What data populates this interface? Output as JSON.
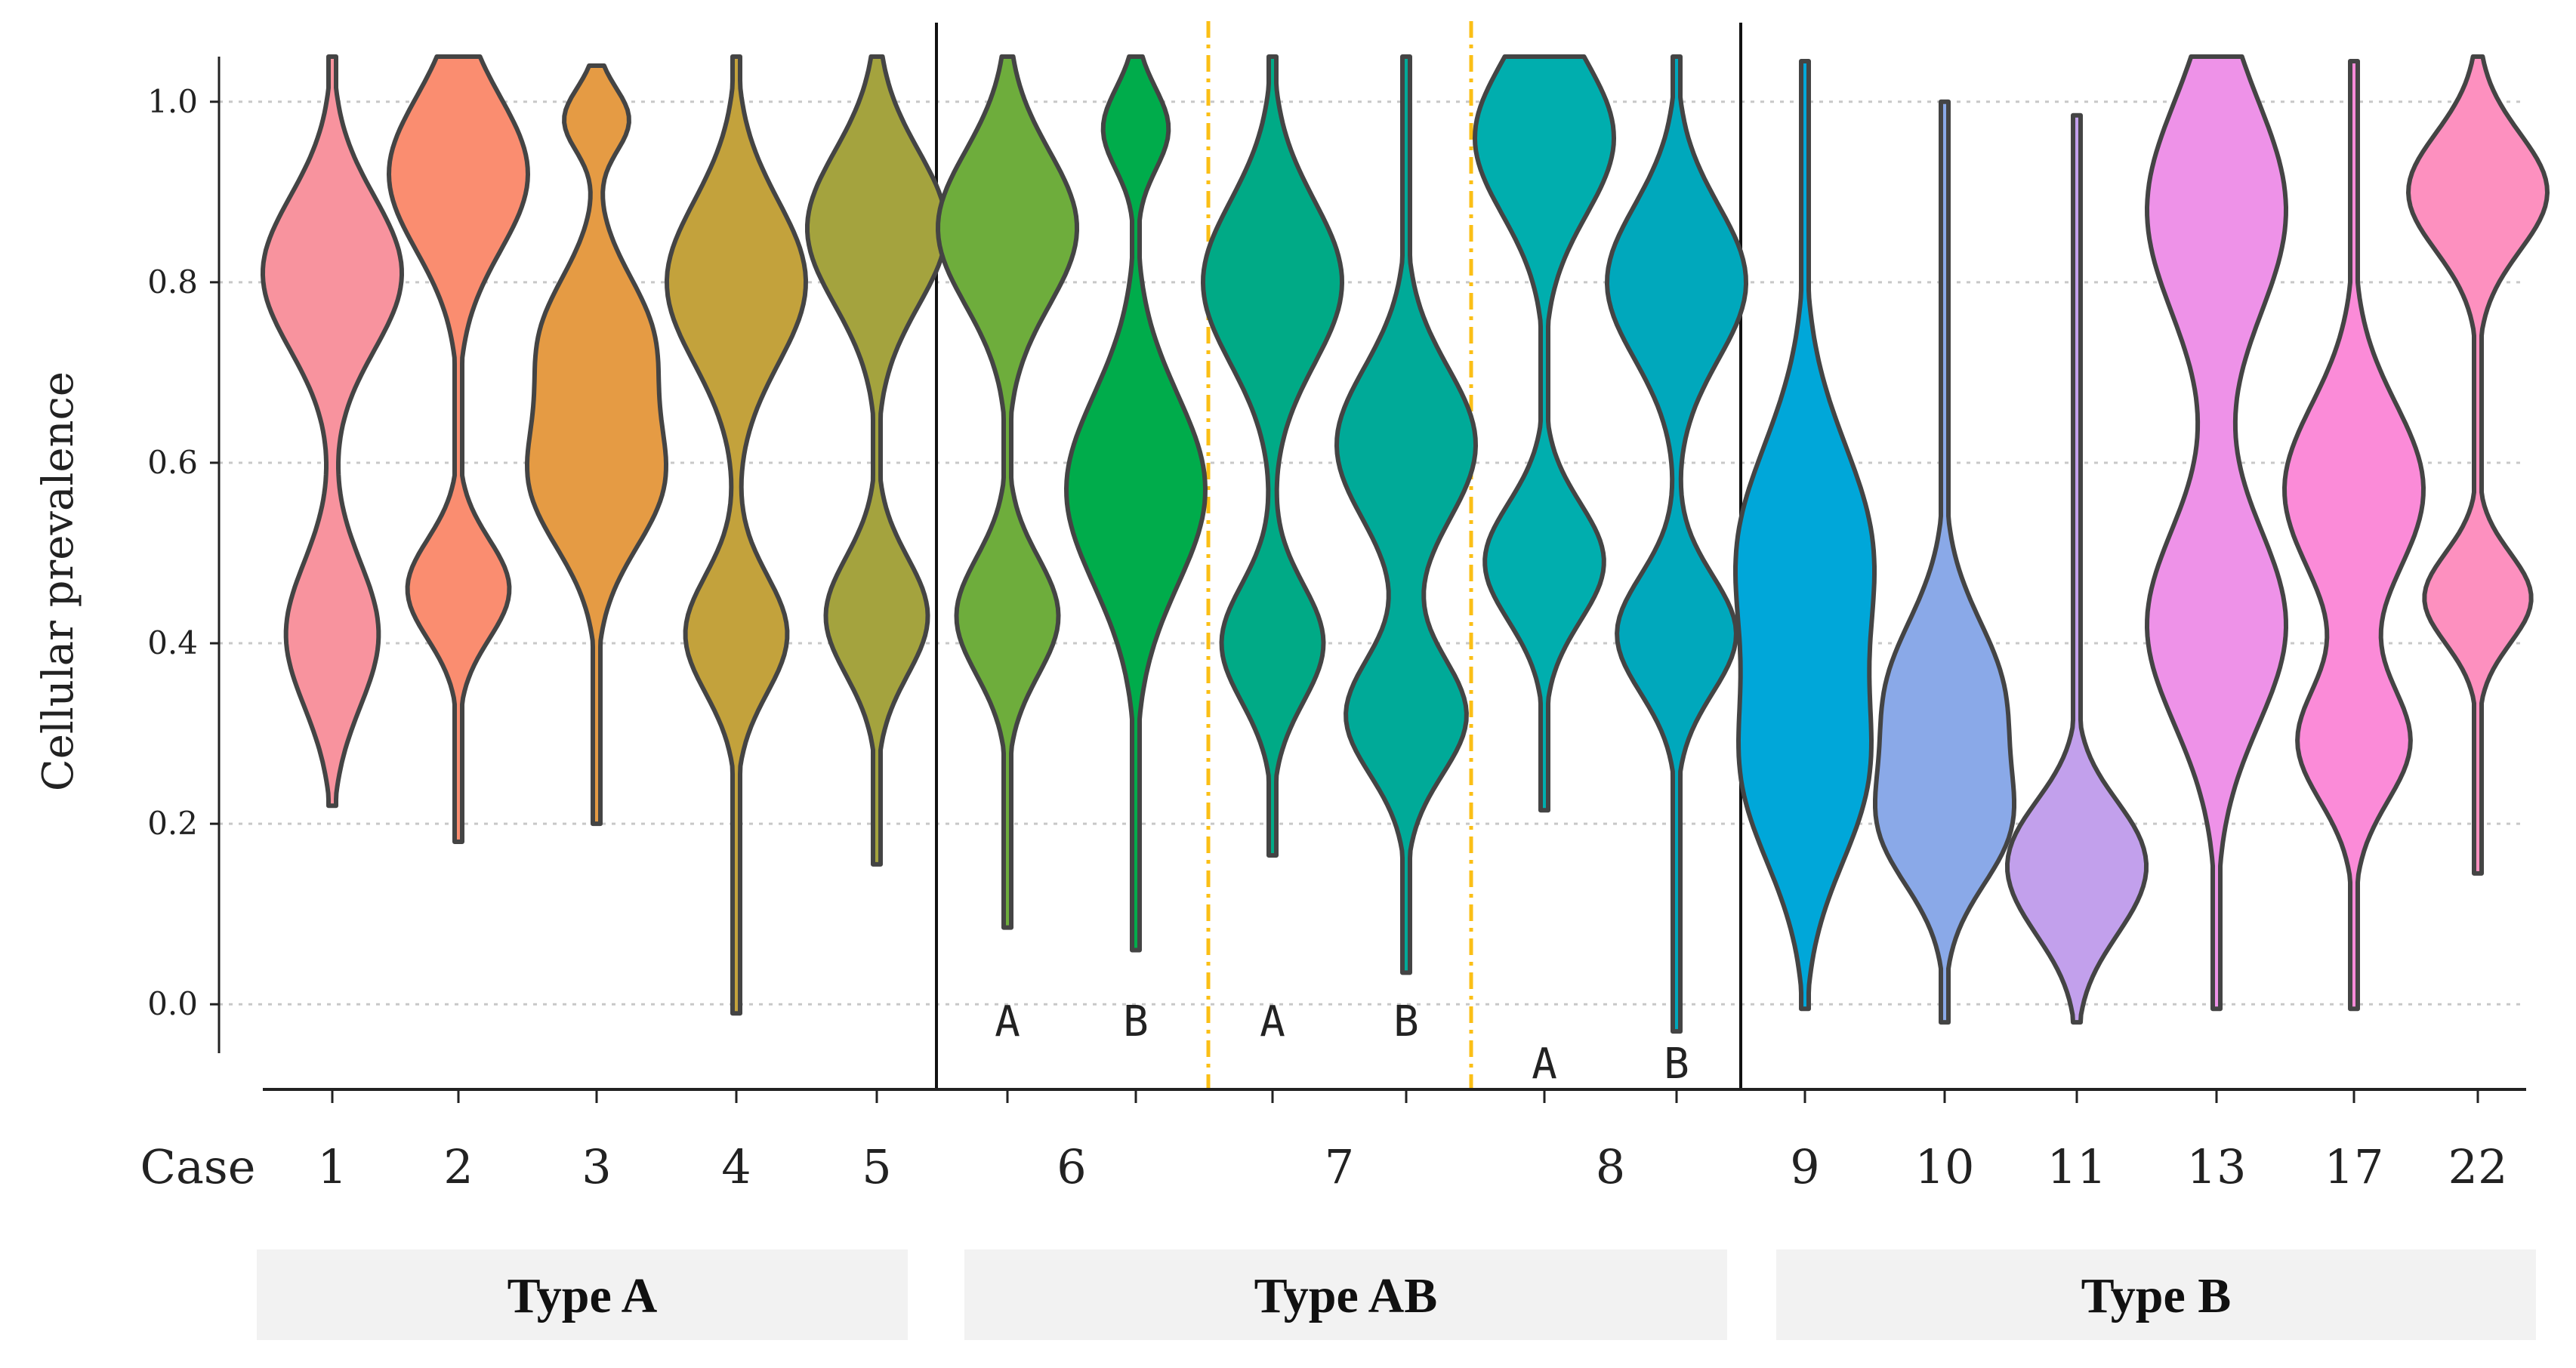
{
  "chart_data": {
    "type": "violin",
    "ylabel": "Cellular prevalence",
    "xlabel": "Case",
    "ylim": [
      -0.05,
      1.05
    ],
    "yticks": [
      "0.0",
      "0.2",
      "0.4",
      "0.6",
      "0.8",
      "1.0"
    ],
    "grid": true,
    "groups": [
      {
        "name": "Type A",
        "cases": [
          "1",
          "2",
          "3",
          "4",
          "5"
        ]
      },
      {
        "name": "Type AB",
        "cases": [
          "6",
          "7",
          "8"
        ]
      },
      {
        "name": "Type B",
        "cases": [
          "9",
          "10",
          "11",
          "13",
          "17",
          "22"
        ]
      }
    ],
    "series": [
      {
        "case": "1",
        "sub": "",
        "group": "Type A",
        "color": "#f8939e",
        "min": 0.22,
        "max": 1.05,
        "modes": [
          [
            0.81,
            0.085,
            0.075
          ],
          [
            0.41,
            0.08,
            0.05
          ]
        ]
      },
      {
        "case": "2",
        "sub": "",
        "group": "Type A",
        "color": "#fa8d70",
        "min": 0.18,
        "max": 1.05,
        "modes": [
          [
            0.92,
            0.085,
            0.075
          ],
          [
            0.46,
            0.055,
            0.055
          ]
        ]
      },
      {
        "case": "3",
        "sub": "",
        "group": "Type A",
        "color": "#e59b44",
        "min": 0.2,
        "max": 1.04,
        "modes": [
          [
            0.98,
            0.035,
            0.05
          ],
          [
            0.74,
            0.07,
            0.08
          ],
          [
            0.58,
            0.075,
            0.1
          ]
        ]
      },
      {
        "case": "4",
        "sub": "",
        "group": "Type A",
        "color": "#c3a23c",
        "min": -0.01,
        "max": 1.05,
        "modes": [
          [
            0.8,
            0.09,
            0.075
          ],
          [
            0.41,
            0.065,
            0.055
          ]
        ]
      },
      {
        "case": "5",
        "sub": "",
        "group": "Type A",
        "color": "#a4a33e",
        "min": 0.155,
        "max": 1.05,
        "modes": [
          [
            0.86,
            0.085,
            0.075
          ],
          [
            0.43,
            0.065,
            0.055
          ]
        ]
      },
      {
        "case": "6",
        "sub": "A",
        "group": "Type AB",
        "color": "#6ead3c",
        "min": 0.085,
        "max": 1.05,
        "modes": [
          [
            0.86,
            0.085,
            0.075
          ],
          [
            0.43,
            0.065,
            0.055
          ]
        ]
      },
      {
        "case": "6",
        "sub": "B",
        "group": "Type AB",
        "color": "#00ac4b",
        "min": 0.06,
        "max": 1.05,
        "modes": [
          [
            0.97,
            0.045,
            0.04
          ],
          [
            0.57,
            0.105,
            0.085
          ]
        ]
      },
      {
        "case": "7",
        "sub": "A",
        "group": "Type AB",
        "color": "#00aa86",
        "min": 0.165,
        "max": 1.05,
        "modes": [
          [
            0.8,
            0.09,
            0.075
          ],
          [
            0.4,
            0.065,
            0.055
          ]
        ]
      },
      {
        "case": "7",
        "sub": "B",
        "group": "Type AB",
        "color": "#00aa98",
        "min": 0.035,
        "max": 1.05,
        "modes": [
          [
            0.62,
            0.085,
            0.075
          ],
          [
            0.32,
            0.065,
            0.065
          ]
        ]
      },
      {
        "case": "8",
        "sub": "A",
        "group": "Type AB",
        "color": "#00aeae",
        "min": 0.215,
        "max": 1.05,
        "modes": [
          [
            0.96,
            0.085,
            0.07
          ],
          [
            0.49,
            0.065,
            0.06
          ]
        ]
      },
      {
        "case": "8",
        "sub": "B",
        "group": "Type AB",
        "color": "#00a8bc",
        "min": -0.03,
        "max": 1.05,
        "modes": [
          [
            0.8,
            0.085,
            0.07
          ],
          [
            0.41,
            0.065,
            0.06
          ]
        ]
      },
      {
        "case": "9",
        "sub": "",
        "group": "Type B",
        "color": "#00a7d9",
        "min": -0.005,
        "max": 1.045,
        "modes": [
          [
            0.5,
            0.12,
            0.1
          ],
          [
            0.25,
            0.1,
            0.085
          ]
        ]
      },
      {
        "case": "10",
        "sub": "",
        "group": "Type B",
        "color": "#8aa9e8",
        "min": -0.02,
        "max": 1.0,
        "modes": [
          [
            0.34,
            0.085,
            0.065
          ],
          [
            0.19,
            0.065,
            0.06
          ]
        ]
      },
      {
        "case": "11",
        "sub": "",
        "group": "Type B",
        "color": "#c2a0ec",
        "min": -0.02,
        "max": 0.985,
        "modes": [
          [
            0.12,
            0.06,
            0.075
          ],
          [
            0.19,
            0.055,
            0.06
          ]
        ]
      },
      {
        "case": "13",
        "sub": "",
        "group": "Type B",
        "color": "#ee92e8",
        "min": -0.005,
        "max": 1.05,
        "modes": [
          [
            0.88,
            0.12,
            0.095
          ],
          [
            0.42,
            0.11,
            0.095
          ]
        ]
      },
      {
        "case": "17",
        "sub": "",
        "group": "Type B",
        "color": "#fb8bd8",
        "min": -0.005,
        "max": 1.045,
        "modes": [
          [
            0.57,
            0.095,
            0.075
          ],
          [
            0.29,
            0.065,
            0.06
          ]
        ]
      },
      {
        "case": "22",
        "sub": "",
        "group": "Type B",
        "color": "#fd90bf",
        "min": 0.145,
        "max": 1.05,
        "modes": [
          [
            0.9,
            0.065,
            0.065
          ],
          [
            0.45,
            0.05,
            0.05
          ]
        ]
      }
    ]
  }
}
